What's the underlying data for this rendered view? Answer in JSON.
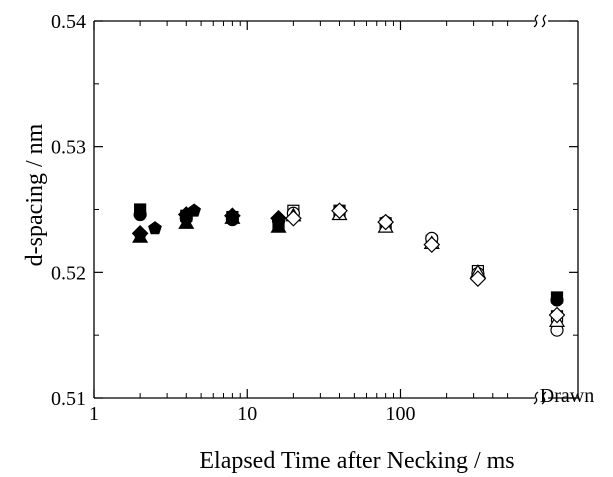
{
  "chart_data": {
    "type": "scatter",
    "title": "",
    "xlabel": "Elapsed Time after Necking / ms",
    "ylabel": "d-spacing / nm",
    "x_scale": "log",
    "xlim": [
      1,
      700
    ],
    "ylim": [
      0.51,
      0.54
    ],
    "grid": false,
    "legend": "none",
    "x_ticks": [
      {
        "value": 1,
        "label": "1"
      },
      {
        "value": 10,
        "label": "10"
      },
      {
        "value": 100,
        "label": "100"
      }
    ],
    "x_break_label": "Drawn",
    "y_ticks": [
      {
        "value": 0.51,
        "label": "0.51"
      },
      {
        "value": 0.52,
        "label": "0.52"
      },
      {
        "value": 0.53,
        "label": "0.53"
      },
      {
        "value": 0.54,
        "label": "0.54"
      }
    ],
    "series": [
      {
        "marker": "square",
        "filled": true,
        "points": [
          {
            "x": 2,
            "y": 0.525
          },
          {
            "x": 4,
            "y": 0.5245
          },
          {
            "x": 8,
            "y": 0.5244
          },
          {
            "x": 16,
            "y": 0.5238
          },
          {
            "x": "Drawn",
            "y": 0.518
          }
        ]
      },
      {
        "marker": "circle",
        "filled": true,
        "points": [
          {
            "x": 2,
            "y": 0.5246
          },
          {
            "x": 4,
            "y": 0.5243
          },
          {
            "x": 8,
            "y": 0.5242
          },
          {
            "x": 16,
            "y": 0.5241
          },
          {
            "x": "Drawn",
            "y": 0.5178
          }
        ]
      },
      {
        "marker": "triangle",
        "filled": true,
        "points": [
          {
            "x": 2,
            "y": 0.5228
          },
          {
            "x": 4,
            "y": 0.5239
          },
          {
            "x": 8,
            "y": 0.5243
          },
          {
            "x": 16,
            "y": 0.5236
          }
        ]
      },
      {
        "marker": "diamond",
        "filled": true,
        "points": [
          {
            "x": 2,
            "y": 0.5231
          },
          {
            "x": 4,
            "y": 0.5246
          },
          {
            "x": 8,
            "y": 0.5245
          },
          {
            "x": 16,
            "y": 0.5243
          }
        ]
      },
      {
        "marker": "pentagon",
        "filled": true,
        "points": [
          {
            "x": 2,
            "y": 0.523
          },
          {
            "x": 2.5,
            "y": 0.5235
          },
          {
            "x": 4.5,
            "y": 0.5249
          },
          {
            "x": 8,
            "y": 0.5243
          },
          {
            "x": 16,
            "y": 0.5242
          }
        ]
      },
      {
        "marker": "square",
        "filled": false,
        "points": [
          {
            "x": 20,
            "y": 0.5249
          },
          {
            "x": 40,
            "y": 0.5249
          },
          {
            "x": 80,
            "y": 0.5239
          },
          {
            "x": 160,
            "y": 0.5225
          },
          {
            "x": 320,
            "y": 0.5201
          },
          {
            "x": "Drawn",
            "y": 0.5165
          }
        ]
      },
      {
        "marker": "circle",
        "filled": false,
        "points": [
          {
            "x": 20,
            "y": 0.5247
          },
          {
            "x": 40,
            "y": 0.5249
          },
          {
            "x": 80,
            "y": 0.524
          },
          {
            "x": 160,
            "y": 0.5227
          },
          {
            "x": 320,
            "y": 0.5199
          },
          {
            "x": "Drawn",
            "y": 0.5154
          }
        ]
      },
      {
        "marker": "triangle",
        "filled": false,
        "points": [
          {
            "x": 20,
            "y": 0.5245
          },
          {
            "x": 40,
            "y": 0.5246
          },
          {
            "x": 80,
            "y": 0.5236
          },
          {
            "x": 160,
            "y": 0.5223
          },
          {
            "x": 320,
            "y": 0.52
          },
          {
            "x": "Drawn",
            "y": 0.5161
          }
        ]
      },
      {
        "marker": "diamond",
        "filled": false,
        "points": [
          {
            "x": 20,
            "y": 0.5243
          },
          {
            "x": 40,
            "y": 0.5249
          },
          {
            "x": 80,
            "y": 0.524
          },
          {
            "x": 160,
            "y": 0.5222
          },
          {
            "x": 320,
            "y": 0.5195
          },
          {
            "x": "Drawn",
            "y": 0.5166
          }
        ]
      }
    ]
  }
}
